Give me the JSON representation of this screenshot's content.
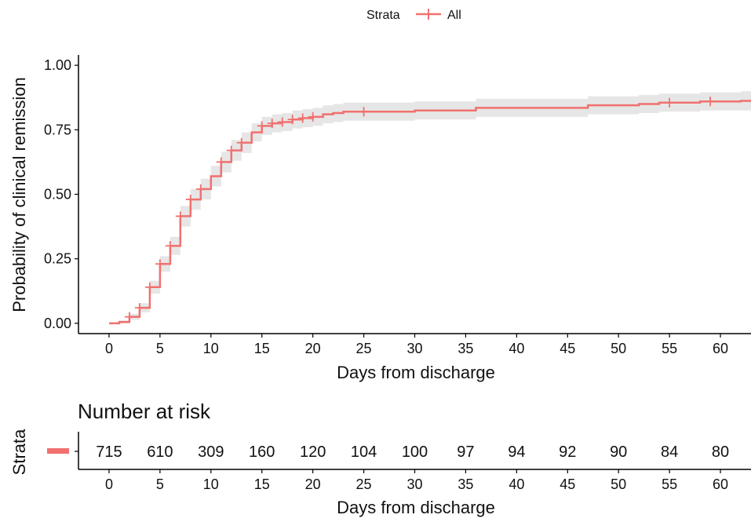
{
  "legend": {
    "title": "Strata",
    "label": "All"
  },
  "colors": {
    "curve": "#F0716F",
    "ci": "#E6E6E6",
    "axis": "#000000"
  },
  "chart_data": [
    {
      "type": "line",
      "chart": "kaplan-meier",
      "xlabel": "Days from discharge",
      "ylabel": "Probability of clinical remission",
      "xlim": [
        -3,
        63
      ],
      "ylim": [
        -0.04,
        1.04
      ],
      "xticks": [
        0,
        5,
        10,
        15,
        20,
        25,
        30,
        35,
        40,
        45,
        50,
        55,
        60
      ],
      "yticks": [
        0.0,
        0.25,
        0.5,
        0.75,
        1.0
      ],
      "ytick_labels": [
        "0.00",
        "0.25",
        "0.50",
        "0.75",
        "1.00"
      ],
      "grid": false,
      "legend_position": "top",
      "series": [
        {
          "name": "All",
          "step": [
            {
              "x": 0,
              "y": 0.0
            },
            {
              "x": 1,
              "y": 0.005
            },
            {
              "x": 2,
              "y": 0.025
            },
            {
              "x": 3,
              "y": 0.06
            },
            {
              "x": 4,
              "y": 0.14
            },
            {
              "x": 5,
              "y": 0.23
            },
            {
              "x": 6,
              "y": 0.3
            },
            {
              "x": 7,
              "y": 0.415
            },
            {
              "x": 8,
              "y": 0.48
            },
            {
              "x": 9,
              "y": 0.52
            },
            {
              "x": 10,
              "y": 0.57
            },
            {
              "x": 11,
              "y": 0.625
            },
            {
              "x": 12,
              "y": 0.67
            },
            {
              "x": 13,
              "y": 0.7
            },
            {
              "x": 14,
              "y": 0.74
            },
            {
              "x": 15,
              "y": 0.765
            },
            {
              "x": 16,
              "y": 0.775
            },
            {
              "x": 17,
              "y": 0.78
            },
            {
              "x": 18,
              "y": 0.79
            },
            {
              "x": 19,
              "y": 0.795
            },
            {
              "x": 20,
              "y": 0.8
            },
            {
              "x": 21,
              "y": 0.81
            },
            {
              "x": 22,
              "y": 0.815
            },
            {
              "x": 23,
              "y": 0.82
            },
            {
              "x": 30,
              "y": 0.825
            },
            {
              "x": 36,
              "y": 0.835
            },
            {
              "x": 47,
              "y": 0.845
            },
            {
              "x": 52,
              "y": 0.85
            },
            {
              "x": 54,
              "y": 0.855
            },
            {
              "x": 58,
              "y": 0.86
            },
            {
              "x": 62,
              "y": 0.862
            },
            {
              "x": 63,
              "y": 0.862
            }
          ],
          "ci": [
            {
              "x": 0,
              "lower": 0.0,
              "upper": 0.0
            },
            {
              "x": 1,
              "lower": 0.0,
              "upper": 0.012
            },
            {
              "x": 2,
              "lower": 0.013,
              "upper": 0.037
            },
            {
              "x": 3,
              "lower": 0.042,
              "upper": 0.078
            },
            {
              "x": 4,
              "lower": 0.115,
              "upper": 0.165
            },
            {
              "x": 5,
              "lower": 0.2,
              "upper": 0.26
            },
            {
              "x": 6,
              "lower": 0.265,
              "upper": 0.335
            },
            {
              "x": 7,
              "lower": 0.375,
              "upper": 0.455
            },
            {
              "x": 8,
              "lower": 0.44,
              "upper": 0.52
            },
            {
              "x": 9,
              "lower": 0.48,
              "upper": 0.56
            },
            {
              "x": 10,
              "lower": 0.53,
              "upper": 0.61
            },
            {
              "x": 11,
              "lower": 0.585,
              "upper": 0.665
            },
            {
              "x": 12,
              "lower": 0.63,
              "upper": 0.71
            },
            {
              "x": 13,
              "lower": 0.66,
              "upper": 0.74
            },
            {
              "x": 14,
              "lower": 0.705,
              "upper": 0.775
            },
            {
              "x": 15,
              "lower": 0.73,
              "upper": 0.8
            },
            {
              "x": 16,
              "lower": 0.74,
              "upper": 0.81
            },
            {
              "x": 17,
              "lower": 0.745,
              "upper": 0.815
            },
            {
              "x": 18,
              "lower": 0.755,
              "upper": 0.825
            },
            {
              "x": 19,
              "lower": 0.76,
              "upper": 0.83
            },
            {
              "x": 20,
              "lower": 0.765,
              "upper": 0.835
            },
            {
              "x": 21,
              "lower": 0.775,
              "upper": 0.845
            },
            {
              "x": 22,
              "lower": 0.78,
              "upper": 0.85
            },
            {
              "x": 23,
              "lower": 0.785,
              "upper": 0.855
            },
            {
              "x": 30,
              "lower": 0.79,
              "upper": 0.86
            },
            {
              "x": 36,
              "lower": 0.8,
              "upper": 0.87
            },
            {
              "x": 47,
              "lower": 0.81,
              "upper": 0.88
            },
            {
              "x": 52,
              "lower": 0.815,
              "upper": 0.885
            },
            {
              "x": 54,
              "lower": 0.82,
              "upper": 0.89
            },
            {
              "x": 58,
              "lower": 0.825,
              "upper": 0.895
            },
            {
              "x": 62,
              "lower": 0.825,
              "upper": 0.899
            },
            {
              "x": 63,
              "lower": 0.825,
              "upper": 0.899
            }
          ],
          "censor_marks": [
            {
              "x": 2,
              "y": 0.025
            },
            {
              "x": 3,
              "y": 0.06
            },
            {
              "x": 4,
              "y": 0.14
            },
            {
              "x": 5,
              "y": 0.23
            },
            {
              "x": 6,
              "y": 0.3
            },
            {
              "x": 7,
              "y": 0.415
            },
            {
              "x": 8,
              "y": 0.48
            },
            {
              "x": 9,
              "y": 0.52
            },
            {
              "x": 11,
              "y": 0.625
            },
            {
              "x": 12,
              "y": 0.67
            },
            {
              "x": 13,
              "y": 0.7
            },
            {
              "x": 15,
              "y": 0.765
            },
            {
              "x": 16,
              "y": 0.775
            },
            {
              "x": 17,
              "y": 0.78
            },
            {
              "x": 18,
              "y": 0.79
            },
            {
              "x": 19,
              "y": 0.795
            },
            {
              "x": 20,
              "y": 0.8
            },
            {
              "x": 25,
              "y": 0.82
            },
            {
              "x": 55,
              "y": 0.855
            },
            {
              "x": 59,
              "y": 0.86
            }
          ]
        }
      ]
    },
    {
      "type": "table",
      "title": "Number at risk",
      "ylabel": "Strata",
      "xlabel": "Days from discharge",
      "xlim": [
        -3,
        63
      ],
      "xticks": [
        0,
        5,
        10,
        15,
        20,
        25,
        30,
        35,
        40,
        45,
        50,
        55,
        60
      ],
      "rows": [
        {
          "name": "All",
          "values": [
            715,
            610,
            309,
            160,
            120,
            104,
            100,
            97,
            94,
            92,
            90,
            84,
            80
          ]
        }
      ]
    }
  ]
}
